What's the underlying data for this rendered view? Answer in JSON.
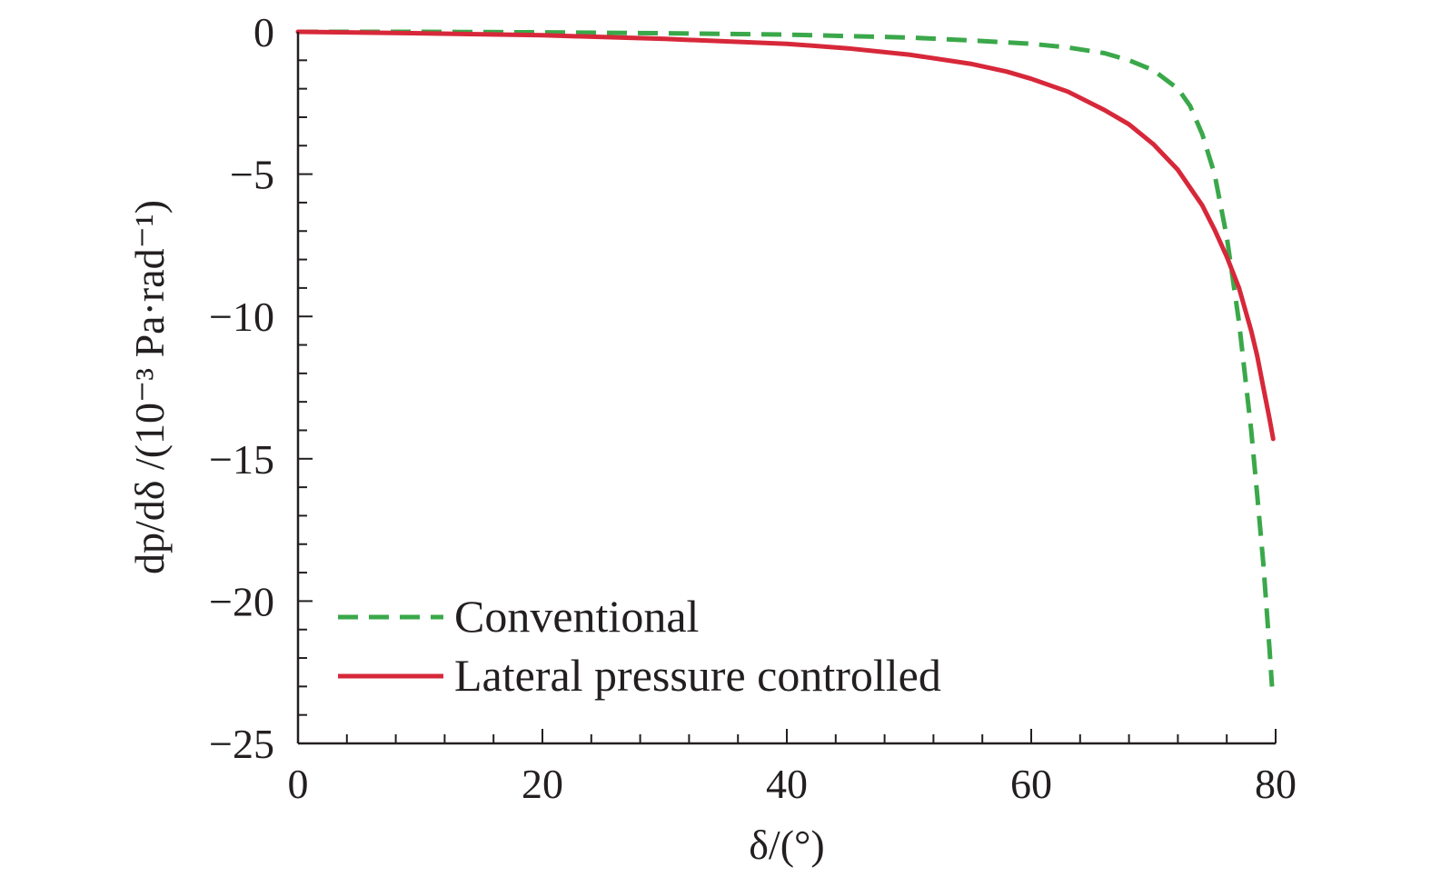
{
  "chart_data": {
    "type": "line",
    "title": "",
    "xlabel": "δ/(°)",
    "ylabel": "dp/dδ /(10⁻³ Pa·rad⁻¹)",
    "xlim": [
      0,
      80
    ],
    "ylim": [
      -25,
      0
    ],
    "xticks": [
      0,
      20,
      40,
      60,
      80
    ],
    "yticks": [
      0,
      -5,
      -10,
      -15,
      -20,
      -25
    ],
    "xtick_labels": [
      "0",
      "20",
      "40",
      "60",
      "80"
    ],
    "ytick_labels": [
      "0",
      "−5",
      "−10",
      "−15",
      "−20",
      "−25"
    ],
    "grid": false,
    "legend_position": "bottom-left",
    "series": [
      {
        "name": "Conventional",
        "color": "#3aa84a",
        "style": "dashed",
        "x": [
          0,
          10,
          20,
          30,
          40,
          50,
          55,
          60,
          63,
          66,
          68,
          70,
          72,
          73,
          74,
          75,
          76,
          77,
          78,
          78.5,
          79,
          79.3,
          79.5,
          79.7
        ],
        "y": [
          0,
          0,
          -0.02,
          -0.05,
          -0.1,
          -0.2,
          -0.3,
          -0.42,
          -0.55,
          -0.75,
          -1.0,
          -1.35,
          -2.0,
          -2.6,
          -3.6,
          -5.0,
          -7.2,
          -10.2,
          -14.0,
          -16.3,
          -18.7,
          -20.5,
          -21.7,
          -23.0
        ]
      },
      {
        "name": "Lateral pressure controlled",
        "color": "#d7283a",
        "style": "solid",
        "x": [
          0,
          10,
          20,
          30,
          40,
          45,
          50,
          55,
          58,
          60,
          63,
          66,
          68,
          70,
          72,
          74,
          75,
          76,
          77,
          78,
          78.5,
          79,
          79.5,
          79.8
        ],
        "y": [
          0,
          -0.05,
          -0.12,
          -0.25,
          -0.42,
          -0.58,
          -0.8,
          -1.12,
          -1.4,
          -1.65,
          -2.1,
          -2.75,
          -3.25,
          -3.95,
          -4.85,
          -6.1,
          -6.95,
          -7.9,
          -9.0,
          -10.5,
          -11.4,
          -12.5,
          -13.6,
          -14.3
        ]
      }
    ]
  }
}
